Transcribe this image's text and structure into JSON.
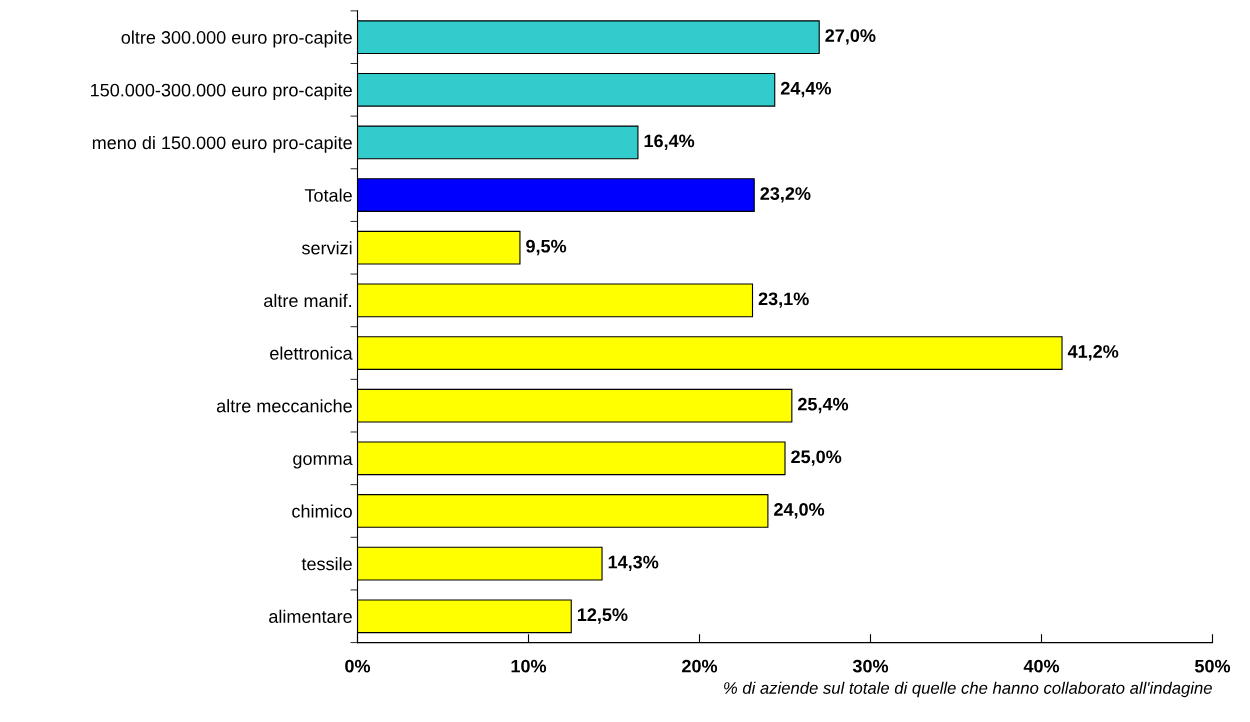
{
  "chart_data": {
    "type": "bar",
    "orientation": "horizontal",
    "xlabel": "% di aziende sul totale di quelle che hanno collaborato all'indagine",
    "categories": [
      "oltre 300.000 euro pro-capite",
      "150.000-300.000 euro pro-capite",
      "meno di 150.000 euro pro-capite",
      "Totale",
      "servizi",
      "altre manif.",
      "elettronica",
      "altre meccaniche",
      "gomma",
      "chimico",
      "tessile",
      "alimentare"
    ],
    "values": [
      27.0,
      24.4,
      16.4,
      23.2,
      9.5,
      23.1,
      41.2,
      25.4,
      25.0,
      24.0,
      14.3,
      12.5
    ],
    "value_labels": [
      "27,0%",
      "24,4%",
      "16,4%",
      "23,2%",
      "9,5%",
      "23,1%",
      "41,2%",
      "25,4%",
      "25,0%",
      "24,0%",
      "14,3%",
      "12,5%"
    ],
    "colors": [
      "#33cccc",
      "#33cccc",
      "#33cccc",
      "#0000ff",
      "#ffff00",
      "#ffff00",
      "#ffff00",
      "#ffff00",
      "#ffff00",
      "#ffff00",
      "#ffff00",
      "#ffff00"
    ],
    "xlim": [
      0,
      50
    ],
    "xticks": [
      {
        "value": 0,
        "label": "0%"
      },
      {
        "value": 10,
        "label": "10%"
      },
      {
        "value": 20,
        "label": "20%"
      },
      {
        "value": 30,
        "label": "30%"
      },
      {
        "value": 40,
        "label": "40%"
      },
      {
        "value": 50,
        "label": "50%"
      }
    ],
    "grid": false
  }
}
